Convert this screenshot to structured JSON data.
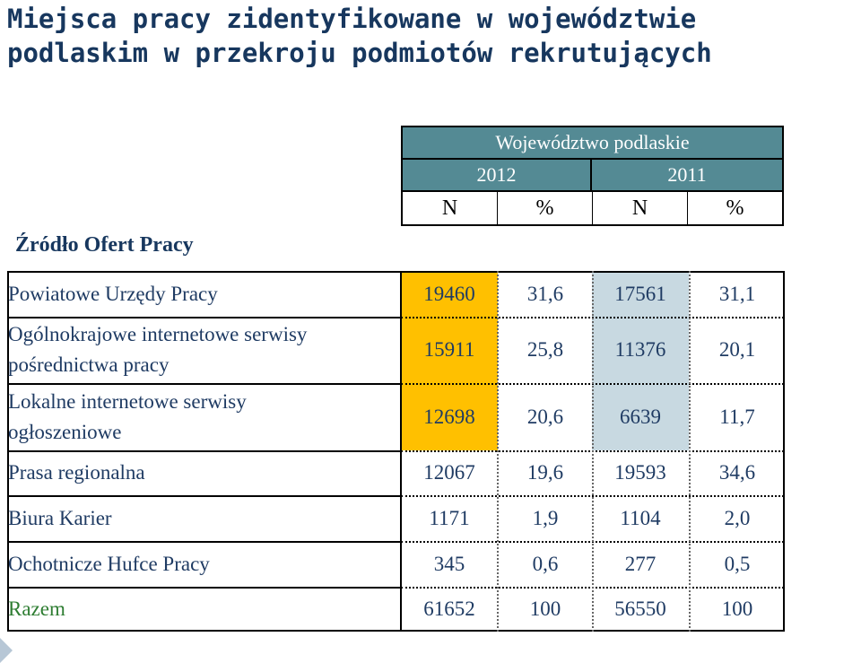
{
  "title": {
    "line1": "Miejsca pracy zidentyfikowane w województwie",
    "line2": "podlaskim w przekroju podmiotów rekrutujących"
  },
  "chart_data": {
    "type": "table",
    "row_header": "Źródło Ofert Pracy",
    "region": "Województwo podlaskie",
    "years": [
      "2012",
      "2011"
    ],
    "sub_columns": [
      "N",
      "%",
      "N",
      "%"
    ],
    "rows": [
      {
        "label_lines": [
          "Powiatowe Urzędy Pracy"
        ],
        "values": [
          "19460",
          "31,6",
          "17561",
          "31,1"
        ]
      },
      {
        "label_lines": [
          "Ogólnokrajowe internetowe serwisy",
          "pośrednictwa pracy"
        ],
        "values": [
          "15911",
          "25,8",
          "11376",
          "20,1"
        ]
      },
      {
        "label_lines": [
          "Lokalne internetowe serwisy",
          "ogłoszeniowe"
        ],
        "values": [
          "12698",
          "20,6",
          "6639",
          "11,7"
        ]
      },
      {
        "label_lines": [
          "Prasa regionalna"
        ],
        "values": [
          "12067",
          "19,6",
          "19593",
          "34,6"
        ]
      },
      {
        "label_lines": [
          "Biura Karier"
        ],
        "values": [
          "1171",
          "1,9",
          "1104",
          "2,0"
        ]
      },
      {
        "label_lines": [
          "Ochotnicze Hufce Pracy"
        ],
        "values": [
          "345",
          "0,6",
          "277",
          "0,5"
        ]
      },
      {
        "label_lines": [
          "Razem"
        ],
        "values": [
          "61652",
          "100",
          "56550",
          "100"
        ]
      }
    ],
    "highlight_colors": {
      "col_2012_N": "#ffc000",
      "col_2011_N": "#c8d9e1",
      "header": "#548a94",
      "text": "#1f3b63",
      "total_label": "#2e7d32"
    }
  }
}
